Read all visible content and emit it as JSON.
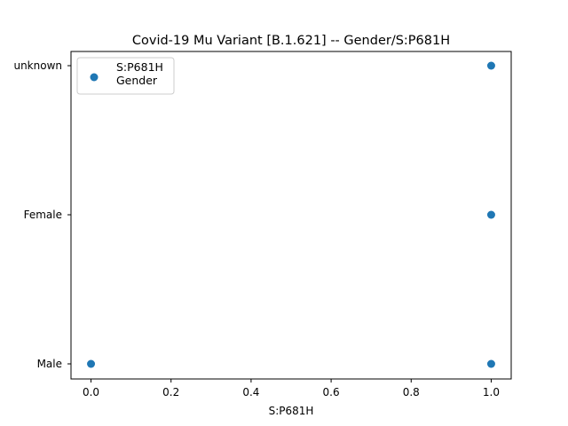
{
  "chart_data": {
    "type": "scatter",
    "title": "Covid-19 Mu Variant [B.1.621] -- Gender/S:P681H",
    "xlabel": "S:P681H",
    "ylabel": "",
    "x_ticks": [
      0.0,
      0.2,
      0.4,
      0.6,
      0.8,
      1.0
    ],
    "x_tick_labels": [
      "0.0",
      "0.2",
      "0.4",
      "0.6",
      "0.8",
      "1.0"
    ],
    "xlim": [
      -0.05,
      1.05
    ],
    "y_categories": [
      "Male",
      "Female",
      "unknown"
    ],
    "grid": false,
    "legend_position": "top-left",
    "series": [
      {
        "name": "S:P681H\nGender",
        "color": "#1f77b4",
        "points": [
          {
            "x": 0.0,
            "y": "Male"
          },
          {
            "x": 1.0,
            "y": "Male"
          },
          {
            "x": 1.0,
            "y": "Female"
          },
          {
            "x": 1.0,
            "y": "unknown"
          }
        ]
      }
    ]
  }
}
